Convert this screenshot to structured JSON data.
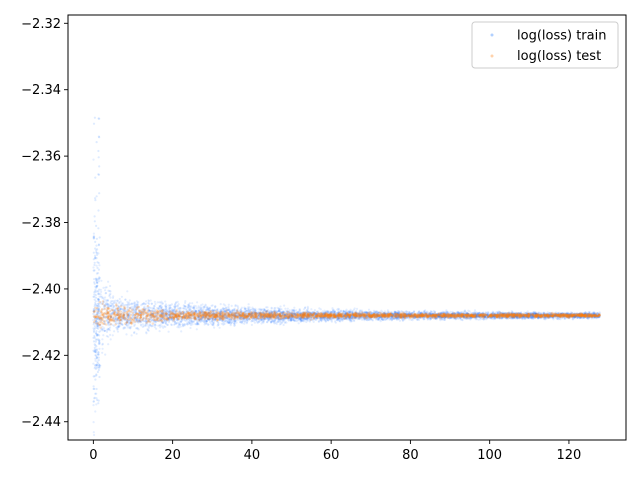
{
  "chart_data": {
    "type": "scatter",
    "title": "",
    "xlabel": "",
    "ylabel": "",
    "xlim": [
      -6.4,
      134.4
    ],
    "ylim": [
      -2.4455,
      -2.3175
    ],
    "x_ticks": [
      0,
      20,
      40,
      60,
      80,
      100,
      120
    ],
    "x_tick_labels": [
      "0",
      "20",
      "40",
      "60",
      "80",
      "100",
      "120"
    ],
    "y_ticks": [
      -2.44,
      -2.42,
      -2.4,
      -2.38,
      -2.36,
      -2.34,
      -2.32
    ],
    "y_tick_labels": [
      "−2.44",
      "−2.42",
      "−2.40",
      "−2.38",
      "−2.36",
      "−2.34",
      "−2.32"
    ],
    "grid": false,
    "legend_position": "top-right",
    "series": [
      {
        "name": "log(loss) train",
        "color": "#1f77ff",
        "center": -2.408,
        "samples_per_epoch_description": "dense scatter, many points per epoch",
        "spread_profile": [
          {
            "x": 0,
            "lo": -2.445,
            "hi": -2.323
          },
          {
            "x": 1,
            "lo": -2.425,
            "hi": -2.393
          },
          {
            "x": 5,
            "lo": -2.414,
            "hi": -2.402
          },
          {
            "x": 20,
            "lo": -2.412,
            "hi": -2.404
          },
          {
            "x": 40,
            "lo": -2.4105,
            "hi": -2.4055
          },
          {
            "x": 60,
            "lo": -2.4098,
            "hi": -2.4062
          },
          {
            "x": 80,
            "lo": -2.4093,
            "hi": -2.4067
          },
          {
            "x": 100,
            "lo": -2.4091,
            "hi": -2.4069
          },
          {
            "x": 127,
            "lo": -2.409,
            "hi": -2.407
          }
        ]
      },
      {
        "name": "log(loss) test",
        "color": "#ff7f0e",
        "center": -2.408,
        "spread_profile": [
          {
            "x": 0,
            "lo": -2.412,
            "hi": -2.404
          },
          {
            "x": 20,
            "lo": -2.4095,
            "hi": -2.4065
          },
          {
            "x": 60,
            "lo": -2.4088,
            "hi": -2.4072
          },
          {
            "x": 127,
            "lo": -2.4085,
            "hi": -2.4075
          }
        ]
      }
    ]
  }
}
